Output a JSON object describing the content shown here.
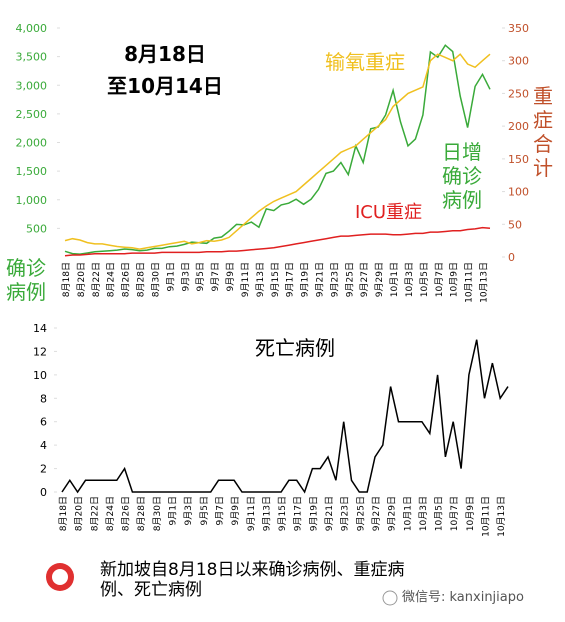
{
  "chart_data": [
    {
      "type": "line",
      "title": "8月18日",
      "subtitle": "至10月14日",
      "y_label": "确诊病例",
      "y2_label": "重症合计",
      "categories": [
        "8月18日",
        null,
        "8月20日",
        null,
        "8月22日",
        null,
        "8月24日",
        null,
        "8月26日",
        null,
        "8月28日",
        null,
        "8月30日",
        null,
        "9月1日",
        null,
        "9月3日",
        null,
        "9月5日",
        null,
        "9月7日",
        null,
        "9月9日",
        null,
        "9月11日",
        null,
        "9月13日",
        null,
        "9月15日",
        null,
        "9月17日",
        null,
        "9月19日",
        null,
        "9月21日",
        null,
        "9月23日",
        null,
        "9月25日",
        null,
        "9月27日",
        null,
        "9月29日",
        null,
        "10月1日",
        null,
        "10月3日",
        null,
        "10月5日",
        null,
        "10月7日",
        null,
        "10月9日",
        null,
        "10月11日",
        null,
        "10月13日",
        null
      ],
      "series": [
        {
          "name": "日增确诊病例",
          "color": "#3aaa3a",
          "axis": "y",
          "values": [
            100,
            60,
            50,
            70,
            90,
            100,
            110,
            120,
            140,
            130,
            110,
            120,
            150,
            150,
            180,
            190,
            220,
            260,
            250,
            240,
            330,
            350,
            450,
            570,
            560,
            610,
            520,
            840,
            810,
            910,
            940,
            1010,
            920,
            1010,
            1180,
            1460,
            1500,
            1650,
            1440,
            1940,
            1650,
            2240,
            2270,
            2480,
            2910,
            2360,
            1940,
            2060,
            2480,
            3580,
            3490,
            3700,
            3590,
            2810,
            2260,
            2980,
            3190,
            2930
          ]
        },
        {
          "name": "输氧重症",
          "color": "#f0c020",
          "axis": "y2",
          "values": [
            25,
            28,
            26,
            22,
            20,
            20,
            18,
            16,
            15,
            14,
            12,
            14,
            16,
            18,
            20,
            22,
            24,
            20,
            22,
            25,
            24,
            26,
            30,
            40,
            50,
            60,
            70,
            78,
            85,
            90,
            95,
            100,
            110,
            120,
            130,
            140,
            150,
            160,
            165,
            170,
            180,
            190,
            200,
            210,
            230,
            240,
            250,
            255,
            260,
            300,
            310,
            305,
            300,
            310,
            295,
            290,
            300,
            310
          ]
        },
        {
          "name": "ICU重症",
          "color": "#e02020",
          "axis": "y2",
          "values": [
            2,
            3,
            3,
            4,
            5,
            5,
            5,
            5,
            5,
            6,
            6,
            6,
            6,
            7,
            7,
            7,
            7,
            7,
            7,
            8,
            8,
            8,
            9,
            9,
            10,
            11,
            12,
            13,
            14,
            16,
            18,
            20,
            22,
            24,
            26,
            28,
            30,
            32,
            32,
            33,
            34,
            35,
            35,
            35,
            34,
            34,
            35,
            36,
            36,
            38,
            38,
            39,
            40,
            40,
            42,
            43,
            45,
            44
          ]
        }
      ],
      "ylim": [
        0,
        4000
      ],
      "yticks": [
        {
          "value": 500,
          "label": "500"
        },
        {
          "value": 1000,
          "label": "1,000"
        },
        {
          "value": 1500,
          "label": "1,500"
        },
        {
          "value": 2000,
          "label": "2,000"
        },
        {
          "value": 2500,
          "label": "2,500"
        },
        {
          "value": 3000,
          "label": "3,000"
        },
        {
          "value": 3500,
          "label": "3,500"
        },
        {
          "value": 4000,
          "label": "4,000"
        }
      ],
      "y2lim": [
        0,
        350
      ],
      "y2ticks": [
        0,
        50,
        100,
        150,
        200,
        250,
        300,
        350
      ],
      "grid": false
    },
    {
      "type": "line",
      "title": "死亡病例",
      "categories": [
        "8月18日",
        null,
        "8月20日",
        null,
        "8月22日",
        null,
        "8月24日",
        null,
        "8月26日",
        null,
        "8月28日",
        null,
        "8月30日",
        null,
        "9月1日",
        null,
        "9月3日",
        null,
        "9月5日",
        null,
        "9月7日",
        null,
        "9月9日",
        null,
        "9月11日",
        null,
        "9月13日",
        null,
        "9月15日",
        null,
        "9月17日",
        null,
        "9月19日",
        null,
        "9月21日",
        null,
        "9月23日",
        null,
        "9月25日",
        null,
        "9月27日",
        null,
        "9月29日",
        null,
        "10月1日",
        null,
        "10月3日",
        null,
        "10月5日",
        null,
        "10月7日",
        null,
        "10月9日",
        null,
        "10月11日",
        null,
        "10月13日",
        null
      ],
      "series": [
        {
          "name": "死亡病例",
          "color": "#000000",
          "values": [
            0,
            1,
            0,
            1,
            1,
            1,
            1,
            1,
            2,
            0,
            0,
            0,
            0,
            0,
            0,
            0,
            0,
            0,
            0,
            0,
            1,
            1,
            1,
            0,
            0,
            0,
            0,
            0,
            0,
            1,
            1,
            0,
            2,
            2,
            3,
            1,
            6,
            1,
            0,
            0,
            3,
            4,
            9,
            6,
            6,
            6,
            6,
            5,
            10,
            3,
            6,
            2,
            10,
            13,
            8,
            11,
            8,
            9
          ]
        }
      ],
      "ylim": [
        0,
        14
      ],
      "yticks": [
        0,
        2,
        4,
        6,
        8,
        10,
        12,
        14
      ],
      "grid": false
    }
  ],
  "caption": "新加坡自8月18日以来确诊病例、重症病例、死亡病例",
  "watermark": "微信号: kanxinjiapo"
}
